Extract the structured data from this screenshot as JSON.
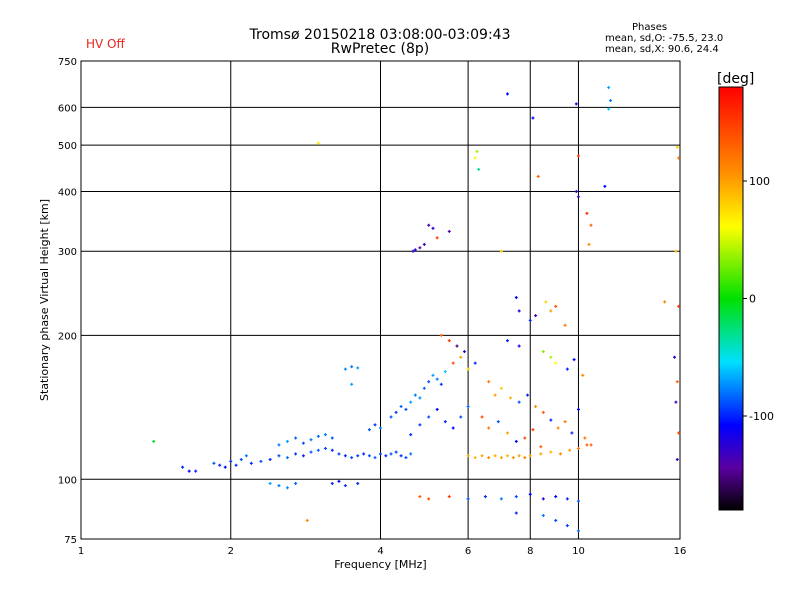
{
  "header": {
    "hv_status": "HV Off",
    "title_line1": "Tromsø 20150218 03:08:00-03:09:43",
    "title_line2": "RwPretec (8p)",
    "stats_title": "Phases",
    "stats_o": "mean, sd,O: -75.5, 23.0",
    "stats_x": "mean, sd,X:  90.6, 24.4"
  },
  "colorbar": {
    "label": "[deg]",
    "ticks": [
      {
        "label": "100",
        "value": 100
      },
      {
        "label": "0",
        "value": 0
      },
      {
        "label": "-100",
        "value": -100
      }
    ],
    "range": [
      -180,
      180
    ]
  },
  "colors": {
    "hv_status": "#e8251b",
    "axis": "#000000"
  },
  "chart_data": {
    "type": "scatter",
    "title": "Tromsø 20150218 03:08:00-03:09:43",
    "subtitle": "RwPretec (8p)",
    "xlabel": "Frequency [MHz]",
    "ylabel": "Stationary phase Virtual Height [km]",
    "xscale": "log",
    "yscale": "log",
    "xlim": [
      1,
      16
    ],
    "ylim": [
      75,
      750
    ],
    "x_ticks": [
      1,
      2,
      4,
      6,
      8,
      10,
      16
    ],
    "x_tick_labels": [
      "1",
      "2",
      "4",
      "6",
      "8",
      "10",
      "16"
    ],
    "y_ticks": [
      75,
      100,
      200,
      300,
      400,
      500,
      600,
      750
    ],
    "y_tick_labels": [
      "75",
      "100",
      "200",
      "300",
      "400",
      "500",
      "600",
      "750"
    ],
    "grid": true,
    "colorbar_label": "[deg]",
    "color_scale": "phase -180 to 180 deg (black-purple-blue-cyan-green-yellow-orange-red)",
    "series": [
      {
        "values": [
          [
            1.4,
            120,
            -10
          ],
          [
            1.6,
            106,
            -100
          ],
          [
            1.65,
            104,
            -110
          ],
          [
            1.7,
            104,
            -100
          ],
          [
            1.85,
            108,
            -90
          ],
          [
            1.9,
            107,
            -100
          ],
          [
            1.95,
            106,
            -110
          ],
          [
            2.0,
            109,
            -95
          ],
          [
            2.05,
            107,
            -100
          ],
          [
            2.1,
            110,
            -90
          ],
          [
            2.15,
            112,
            -80
          ],
          [
            2.2,
            108,
            -100
          ],
          [
            2.3,
            109,
            -90
          ],
          [
            2.4,
            110,
            -100
          ],
          [
            2.5,
            112,
            -90
          ],
          [
            2.6,
            111,
            -80
          ],
          [
            2.7,
            113,
            -95
          ],
          [
            2.8,
            112,
            -100
          ],
          [
            2.9,
            114,
            -90
          ],
          [
            3.0,
            115,
            -85
          ],
          [
            3.1,
            116,
            -90
          ],
          [
            3.2,
            115,
            -100
          ],
          [
            3.3,
            113,
            -95
          ],
          [
            3.4,
            112,
            -100
          ],
          [
            3.5,
            111,
            -90
          ],
          [
            3.6,
            112,
            -95
          ],
          [
            3.7,
            113,
            -100
          ],
          [
            3.8,
            112,
            -90
          ],
          [
            3.9,
            111,
            -85
          ],
          [
            4.0,
            113,
            -95
          ],
          [
            4.1,
            112,
            -100
          ],
          [
            4.2,
            113,
            -90
          ],
          [
            4.3,
            114,
            -95
          ],
          [
            4.4,
            112,
            -100
          ],
          [
            4.5,
            111,
            -90
          ],
          [
            4.6,
            113,
            -80
          ],
          [
            2.5,
            118,
            -80
          ],
          [
            2.6,
            120,
            -70
          ],
          [
            2.7,
            122,
            -85
          ],
          [
            2.8,
            119,
            -90
          ],
          [
            2.9,
            121,
            -80
          ],
          [
            3.0,
            123,
            -85
          ],
          [
            3.1,
            124,
            -80
          ],
          [
            3.2,
            122,
            -90
          ],
          [
            2.4,
            98,
            -70
          ],
          [
            2.5,
            97,
            -80
          ],
          [
            2.6,
            96,
            -75
          ],
          [
            2.7,
            98,
            -85
          ],
          [
            3.2,
            98,
            -100
          ],
          [
            3.3,
            99,
            -110
          ],
          [
            3.4,
            97,
            -95
          ],
          [
            3.6,
            98,
            -100
          ],
          [
            2.85,
            82,
            110
          ],
          [
            3.0,
            505,
            70
          ],
          [
            3.4,
            170,
            -75
          ],
          [
            3.5,
            172,
            -80
          ],
          [
            3.6,
            171,
            -70
          ],
          [
            3.5,
            158,
            -70
          ],
          [
            3.8,
            127,
            -90
          ],
          [
            3.9,
            130,
            -100
          ],
          [
            4.0,
            128,
            -80
          ],
          [
            4.2,
            135,
            -90
          ],
          [
            4.3,
            138,
            -95
          ],
          [
            4.4,
            142,
            -85
          ],
          [
            4.5,
            140,
            -90
          ],
          [
            4.6,
            145,
            -70
          ],
          [
            4.7,
            150,
            -80
          ],
          [
            4.8,
            148,
            -75
          ],
          [
            4.9,
            155,
            -85
          ],
          [
            5.0,
            160,
            -90
          ],
          [
            5.1,
            165,
            -70
          ],
          [
            5.2,
            162,
            -80
          ],
          [
            5.3,
            158,
            -95
          ],
          [
            5.4,
            168,
            -60
          ],
          [
            4.6,
            124,
            -100
          ],
          [
            4.8,
            130,
            -95
          ],
          [
            5.0,
            135,
            -90
          ],
          [
            5.2,
            140,
            -110
          ],
          [
            5.4,
            132,
            -100
          ],
          [
            5.6,
            128,
            -110
          ],
          [
            5.8,
            135,
            -90
          ],
          [
            6.0,
            142,
            -85
          ],
          [
            4.65,
            300,
            -130
          ],
          [
            4.7,
            302,
            -120
          ],
          [
            4.8,
            305,
            -140
          ],
          [
            4.9,
            310,
            -130
          ],
          [
            5.0,
            340,
            -130
          ],
          [
            5.1,
            335,
            -120
          ],
          [
            5.5,
            330,
            -140
          ],
          [
            5.2,
            320,
            150
          ],
          [
            5.3,
            200,
            130
          ],
          [
            5.5,
            195,
            150
          ],
          [
            5.7,
            190,
            -150
          ],
          [
            5.9,
            185,
            -130
          ],
          [
            5.6,
            175,
            140
          ],
          [
            5.8,
            180,
            100
          ],
          [
            6.0,
            170,
            80
          ],
          [
            6.2,
            175,
            -100
          ],
          [
            6.0,
            112,
            100
          ],
          [
            6.2,
            111,
            90
          ],
          [
            6.4,
            112,
            100
          ],
          [
            6.6,
            111,
            110
          ],
          [
            6.8,
            112,
            95
          ],
          [
            7.0,
            111,
            100
          ],
          [
            7.2,
            112,
            90
          ],
          [
            7.4,
            111,
            105
          ],
          [
            7.6,
            112,
            100
          ],
          [
            7.8,
            111,
            110
          ],
          [
            8.0,
            112,
            95
          ],
          [
            8.4,
            113,
            100
          ],
          [
            8.8,
            114,
            90
          ],
          [
            9.2,
            113,
            110
          ],
          [
            9.6,
            115,
            100
          ],
          [
            10.0,
            116,
            120
          ],
          [
            10.4,
            118,
            130
          ],
          [
            4.8,
            92,
            130
          ],
          [
            5.0,
            91,
            140
          ],
          [
            5.5,
            92,
            150
          ],
          [
            6.0,
            91,
            -90
          ],
          [
            6.5,
            92,
            -100
          ],
          [
            7.0,
            91,
            -80
          ],
          [
            7.5,
            92,
            -90
          ],
          [
            8.0,
            93,
            -110
          ],
          [
            8.5,
            91,
            -120
          ],
          [
            9.0,
            92,
            -110
          ],
          [
            9.5,
            91,
            -100
          ],
          [
            10.0,
            90,
            -90
          ],
          [
            7.5,
            85,
            -100
          ],
          [
            8.5,
            84,
            -80
          ],
          [
            9.0,
            82,
            -90
          ],
          [
            9.5,
            80,
            -95
          ],
          [
            10.0,
            78,
            -85
          ],
          [
            6.2,
            470,
            60
          ],
          [
            6.3,
            445,
            -30
          ],
          [
            6.25,
            485,
            40
          ],
          [
            7.0,
            300,
            80
          ],
          [
            7.2,
            640,
            -110
          ],
          [
            8.1,
            570,
            -110
          ],
          [
            8.3,
            430,
            130
          ],
          [
            9.9,
            610,
            -120
          ],
          [
            10.0,
            475,
            150
          ],
          [
            9.9,
            400,
            -120
          ],
          [
            10.0,
            390,
            -130
          ],
          [
            10.4,
            360,
            160
          ],
          [
            10.6,
            340,
            130
          ],
          [
            10.5,
            310,
            110
          ],
          [
            11.3,
            410,
            -110
          ],
          [
            11.5,
            660,
            -70
          ],
          [
            11.6,
            620,
            -80
          ],
          [
            11.5,
            595,
            -60
          ],
          [
            15.8,
            495,
            80
          ],
          [
            15.9,
            470,
            120
          ],
          [
            15.7,
            300,
            90
          ],
          [
            15.9,
            230,
            150
          ],
          [
            7.5,
            240,
            -110
          ],
          [
            7.6,
            225,
            -120
          ],
          [
            8.0,
            215,
            -100
          ],
          [
            8.2,
            220,
            -130
          ],
          [
            8.6,
            235,
            80
          ],
          [
            8.8,
            225,
            100
          ],
          [
            9.0,
            230,
            140
          ],
          [
            9.4,
            210,
            120
          ],
          [
            7.2,
            195,
            -100
          ],
          [
            7.6,
            190,
            -120
          ],
          [
            8.5,
            185,
            30
          ],
          [
            8.8,
            180,
            40
          ],
          [
            9.0,
            175,
            60
          ],
          [
            9.5,
            170,
            -100
          ],
          [
            9.8,
            178,
            -110
          ],
          [
            10.2,
            165,
            110
          ],
          [
            6.6,
            160,
            120
          ],
          [
            6.8,
            150,
            100
          ],
          [
            7.0,
            155,
            80
          ],
          [
            7.3,
            148,
            90
          ],
          [
            7.6,
            145,
            -90
          ],
          [
            7.9,
            150,
            -100
          ],
          [
            8.2,
            142,
            110
          ],
          [
            8.5,
            138,
            130
          ],
          [
            8.8,
            133,
            -100
          ],
          [
            9.1,
            128,
            110
          ],
          [
            9.4,
            132,
            120
          ],
          [
            9.7,
            125,
            -100
          ],
          [
            10.0,
            140,
            -110
          ],
          [
            10.3,
            122,
            120
          ],
          [
            10.6,
            118,
            130
          ],
          [
            6.4,
            135,
            140
          ],
          [
            6.6,
            128,
            120
          ],
          [
            6.9,
            132,
            -90
          ],
          [
            7.2,
            125,
            100
          ],
          [
            7.5,
            120,
            -110
          ],
          [
            7.8,
            122,
            140
          ],
          [
            8.1,
            127,
            150
          ],
          [
            8.4,
            117,
            130
          ],
          [
            15.6,
            180,
            -120
          ],
          [
            15.8,
            160,
            130
          ],
          [
            15.7,
            145,
            -130
          ],
          [
            15.9,
            125,
            140
          ],
          [
            15.8,
            110,
            -130
          ],
          [
            14.9,
            235,
            110
          ]
        ]
      }
    ]
  }
}
